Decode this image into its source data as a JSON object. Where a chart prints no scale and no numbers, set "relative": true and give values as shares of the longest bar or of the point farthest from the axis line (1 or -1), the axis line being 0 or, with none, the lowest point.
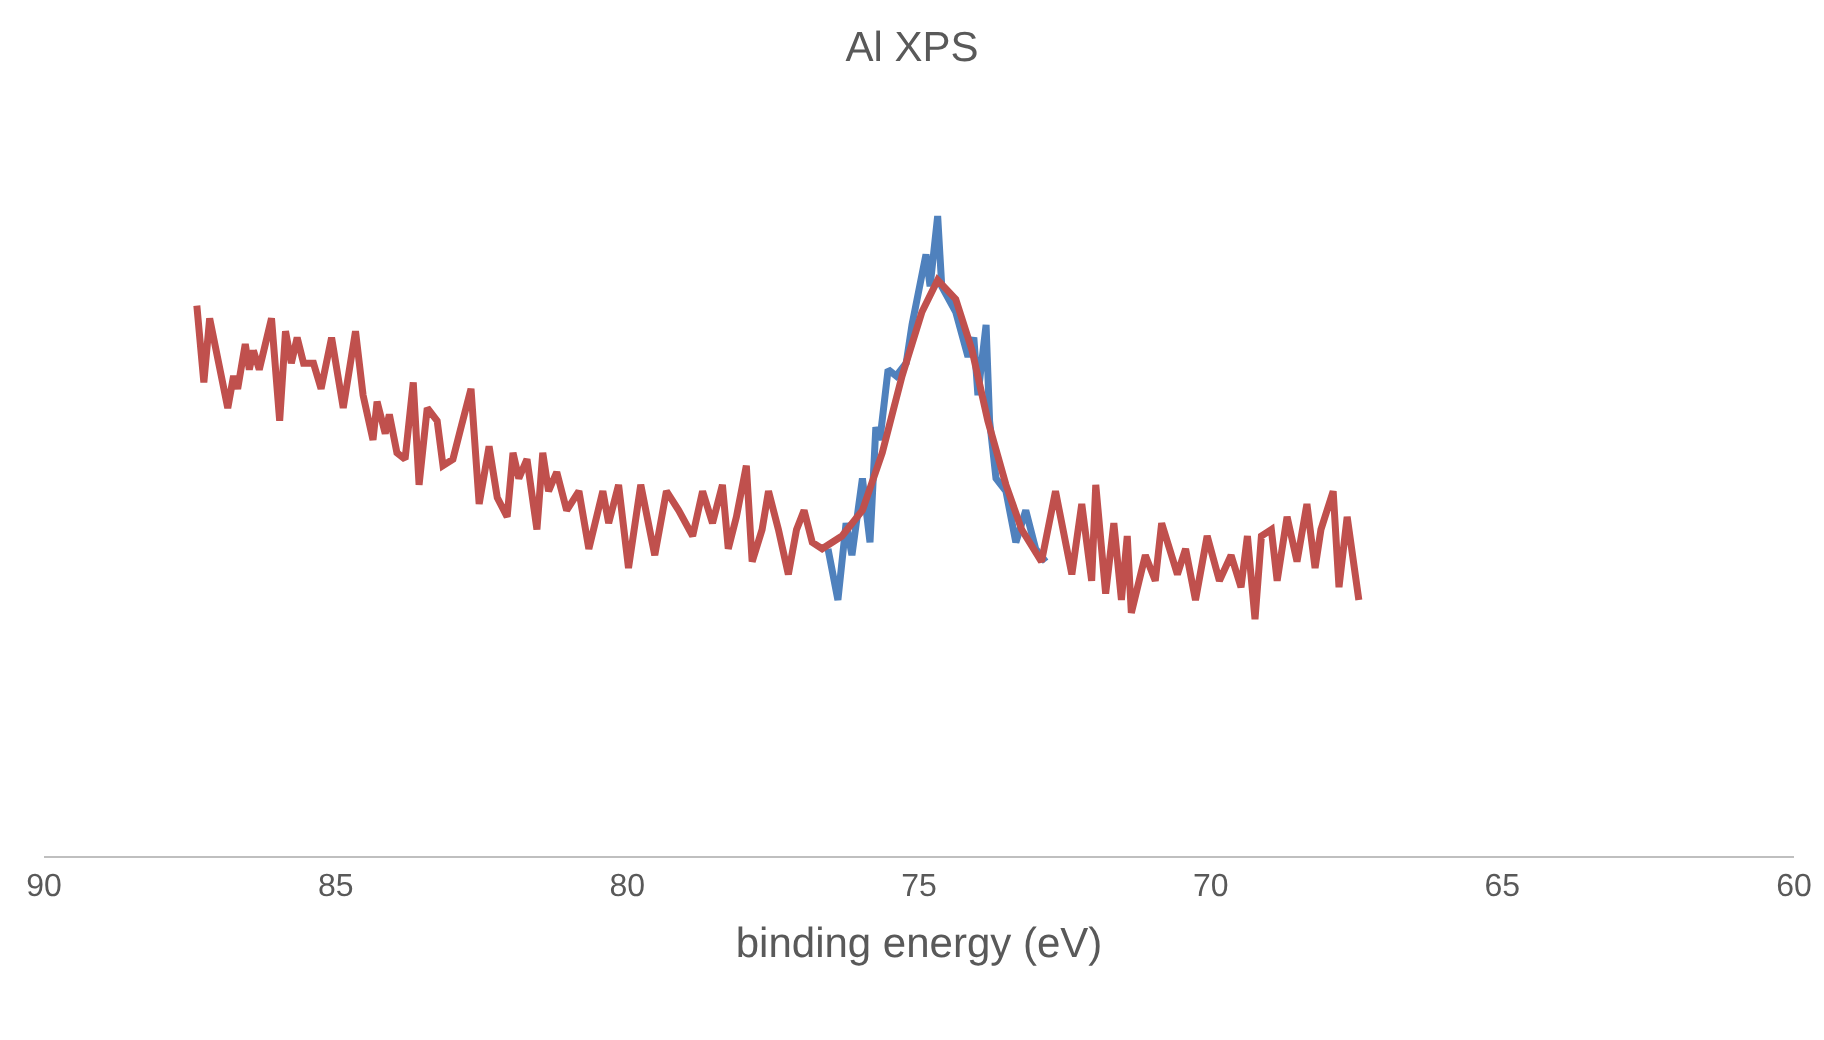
{
  "chart_data": {
    "type": "line",
    "title": "Al XPS",
    "xlabel": "binding energy (eV)",
    "relative": true,
    "tick_labels": "x",
    "xlim": [
      90,
      60
    ],
    "xticks": [
      90,
      85,
      80,
      75,
      70,
      65,
      60
    ],
    "series": [
      {
        "color": "#4f81bd",
        "x": [
          76.56,
          76.39,
          76.25,
          76.15,
          75.97,
          75.84,
          75.74,
          75.67,
          75.53,
          75.39,
          75.22,
          75.12,
          74.88,
          74.81,
          74.68,
          74.61,
          74.37,
          74.16,
          74.06,
          73.99,
          73.85,
          73.79,
          73.68,
          73.51,
          73.34,
          73.17,
          73.0,
          72.83
        ],
        "values": [
          0.48,
          0.4,
          0.52,
          0.47,
          0.59,
          0.49,
          0.67,
          0.65,
          0.76,
          0.75,
          0.77,
          0.83,
          0.94,
          0.89,
          1,
          0.89,
          0.85,
          0.78,
          0.81,
          0.72,
          0.83,
          0.68,
          0.59,
          0.57,
          0.49,
          0.54,
          0.48,
          0.46
        ]
      },
      {
        "color": "#c0504d",
        "x": [
          87.38,
          87.26,
          87.16,
          86.85,
          86.75,
          86.68,
          86.55,
          86.48,
          86.41,
          86.31,
          86.1,
          85.96,
          85.86,
          85.76,
          85.66,
          85.55,
          85.38,
          85.25,
          85.07,
          84.87,
          84.66,
          84.53,
          84.36,
          84.29,
          84.15,
          84.08,
          83.95,
          83.81,
          83.67,
          83.57,
          83.43,
          83.26,
          83.16,
          82.99,
          82.85,
          82.68,
          82.54,
          82.37,
          82.23,
          82.06,
          81.96,
          81.86,
          81.72,
          81.55,
          81.45,
          81.35,
          81.21,
          81.04,
          80.83,
          80.66,
          80.42,
          80.32,
          80.15,
          79.98,
          79.77,
          79.53,
          79.33,
          79.12,
          78.88,
          78.71,
          78.54,
          78.37,
          78.27,
          78.13,
          77.96,
          77.86,
          77.69,
          77.58,
          77.41,
          77.24,
          77.1,
          76.97,
          76.83,
          76.66,
          76.32,
          75.97,
          75.63,
          75.29,
          74.95,
          74.68,
          74.37,
          74.09,
          73.82,
          73.51,
          73.24,
          72.9,
          72.66,
          72.38,
          72.21,
          72.04,
          71.97,
          71.8,
          71.66,
          71.53,
          71.43,
          71.36,
          71.12,
          70.95,
          70.84,
          70.57,
          70.43,
          70.26,
          70.06,
          69.85,
          69.65,
          69.48,
          69.37,
          69.24,
          69.13,
          68.96,
          68.86,
          68.69,
          68.52,
          68.35,
          68.21,
          68.11,
          67.9,
          67.8,
          67.66,
          67.46
        ],
        "values": [
          0.86,
          0.74,
          0.84,
          0.7,
          0.75,
          0.73,
          0.8,
          0.76,
          0.79,
          0.76,
          0.84,
          0.68,
          0.82,
          0.77,
          0.81,
          0.77,
          0.77,
          0.73,
          0.81,
          0.7,
          0.82,
          0.72,
          0.65,
          0.71,
          0.66,
          0.69,
          0.63,
          0.62,
          0.74,
          0.58,
          0.7,
          0.68,
          0.61,
          0.62,
          0.67,
          0.73,
          0.55,
          0.64,
          0.56,
          0.53,
          0.63,
          0.59,
          0.62,
          0.51,
          0.63,
          0.57,
          0.6,
          0.54,
          0.57,
          0.48,
          0.57,
          0.52,
          0.58,
          0.45,
          0.58,
          0.47,
          0.57,
          0.54,
          0.5,
          0.57,
          0.52,
          0.58,
          0.48,
          0.53,
          0.61,
          0.46,
          0.51,
          0.57,
          0.51,
          0.44,
          0.51,
          0.54,
          0.49,
          0.48,
          0.5,
          0.54,
          0.63,
          0.75,
          0.85,
          0.9,
          0.87,
          0.79,
          0.68,
          0.58,
          0.51,
          0.46,
          0.57,
          0.44,
          0.55,
          0.43,
          0.58,
          0.41,
          0.52,
          0.4,
          0.5,
          0.38,
          0.47,
          0.43,
          0.52,
          0.44,
          0.48,
          0.4,
          0.5,
          0.43,
          0.47,
          0.42,
          0.5,
          0.37,
          0.5,
          0.51,
          0.43,
          0.53,
          0.46,
          0.55,
          0.45,
          0.51,
          0.57,
          0.42,
          0.53,
          0.4
        ]
      }
    ]
  }
}
